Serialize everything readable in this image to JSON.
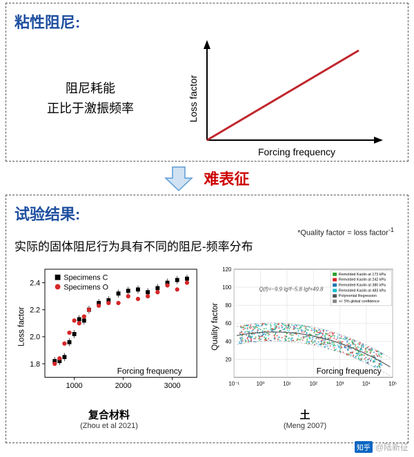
{
  "panel_top": {
    "title": "粘性阻尼:",
    "body_line1": "阻尼耗能",
    "body_line2": "正比于激振频率",
    "chart": {
      "y_label": "Loss factor",
      "x_label": "Forcing frequency",
      "axis_color": "#000000",
      "line_color": "#c0272d",
      "line_width": 3
    }
  },
  "arrow": {
    "label": "难表征",
    "fill": "#cfe2f3",
    "stroke": "#5b9bd5"
  },
  "panel_bottom": {
    "title": "试验结果:",
    "note": "*Quality factor = loss factor",
    "note_sup": "-1",
    "body": "实际的固体阻尼行为具有不同的阻尼-频率分布",
    "chart_left": {
      "y_label": "Loss factor",
      "x_label": "Forcing frequency",
      "legend_c": "Specimens C",
      "legend_o": "Specimens O",
      "x_ticks": [
        "1000",
        "2000",
        "3000"
      ],
      "y_ticks": [
        "1.8",
        "2.0",
        "2.2",
        "2.4"
      ],
      "series_c_color": "#000000",
      "series_o_color": "#d62728",
      "points_c": [
        {
          "x": 600,
          "y": 1.82
        },
        {
          "x": 700,
          "y": 1.82
        },
        {
          "x": 800,
          "y": 1.85
        },
        {
          "x": 900,
          "y": 1.96
        },
        {
          "x": 1000,
          "y": 2.02
        },
        {
          "x": 1100,
          "y": 2.13
        },
        {
          "x": 1200,
          "y": 2.12
        },
        {
          "x": 1300,
          "y": 2.2
        },
        {
          "x": 1500,
          "y": 2.25
        },
        {
          "x": 1700,
          "y": 2.27
        },
        {
          "x": 1900,
          "y": 2.32
        },
        {
          "x": 2100,
          "y": 2.34
        },
        {
          "x": 2300,
          "y": 2.35
        },
        {
          "x": 2500,
          "y": 2.33
        },
        {
          "x": 2700,
          "y": 2.36
        },
        {
          "x": 2900,
          "y": 2.4
        },
        {
          "x": 3100,
          "y": 2.42
        },
        {
          "x": 3300,
          "y": 2.43
        }
      ],
      "points_o": [
        {
          "x": 600,
          "y": 1.8
        },
        {
          "x": 700,
          "y": 1.84
        },
        {
          "x": 800,
          "y": 1.95
        },
        {
          "x": 900,
          "y": 2.03
        },
        {
          "x": 1000,
          "y": 2.12
        },
        {
          "x": 1100,
          "y": 2.1
        },
        {
          "x": 1200,
          "y": 2.15
        },
        {
          "x": 1300,
          "y": 2.2
        },
        {
          "x": 1500,
          "y": 2.23
        },
        {
          "x": 1700,
          "y": 2.25
        },
        {
          "x": 1900,
          "y": 2.25
        },
        {
          "x": 2100,
          "y": 2.3
        },
        {
          "x": 2300,
          "y": 2.28
        },
        {
          "x": 2500,
          "y": 2.3
        },
        {
          "x": 2700,
          "y": 2.33
        },
        {
          "x": 2900,
          "y": 2.38
        },
        {
          "x": 3100,
          "y": 2.35
        },
        {
          "x": 3300,
          "y": 2.4
        }
      ],
      "xlim": [
        400,
        3500
      ],
      "ylim": [
        1.7,
        2.5
      ],
      "caption_main": "复合材料",
      "caption_sub": "(Zhou et al 2021)"
    },
    "chart_right": {
      "y_label": "Quality factor",
      "x_label": "Forcing frequency",
      "y_ticks": [
        "20",
        "40",
        "60",
        "80",
        "100",
        "120"
      ],
      "x_ticks": [
        "10⁻¹",
        "10⁰",
        "10¹",
        "10²",
        "10³",
        "10⁴",
        "10⁵"
      ],
      "legend": [
        {
          "label": "Remolded Kaolin at 173 kPa",
          "color": "#2ca02c"
        },
        {
          "label": "Remolded Kaolin at 242 kPa",
          "color": "#d62728"
        },
        {
          "label": "Remolded Kaolin at 380 kPa",
          "color": "#1f77b4"
        },
        {
          "label": "Remolded Kaolin at 483 kPa",
          "color": "#17becf"
        },
        {
          "label": "Polynomial Regression",
          "color": "#555555"
        },
        {
          "label": "+/- 5% global confidence",
          "color": "#888888"
        }
      ],
      "fit_eqn": "Q(f) = −9.9·lg²f − 5.8·lgf + 49.8",
      "ylim": [
        0,
        120
      ],
      "caption_main": "土",
      "caption_sub": "(Meng 2007)"
    }
  },
  "watermark": {
    "site": "知乎",
    "user": "@陆新征"
  }
}
